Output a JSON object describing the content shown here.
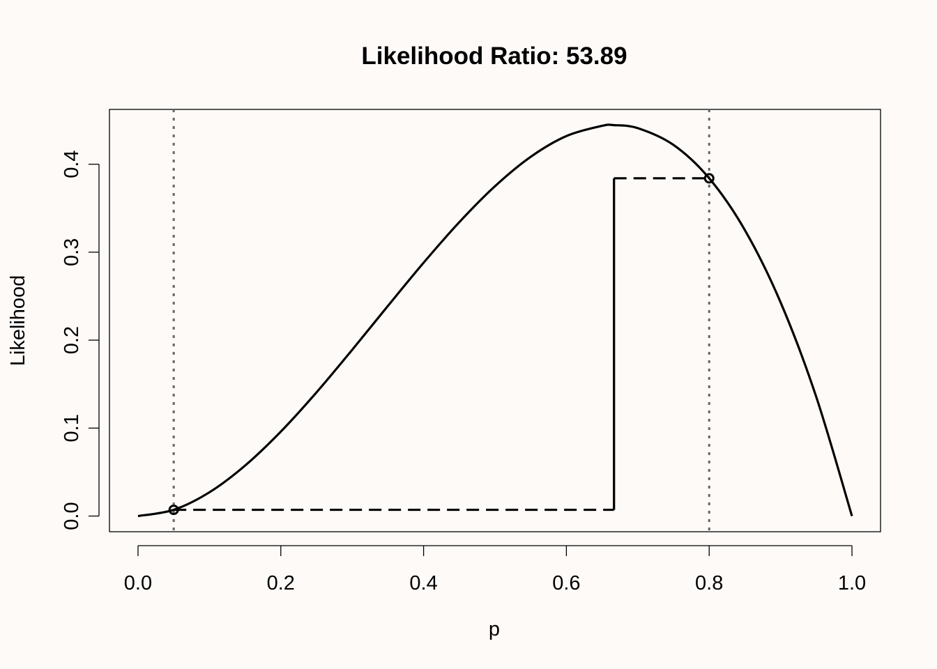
{
  "chart_data": {
    "type": "line",
    "title": "Likelihood Ratio: 53.89",
    "xlabel": "p",
    "ylabel": "Likelihood",
    "xlim": [
      -0.04,
      1.04
    ],
    "ylim": [
      -0.0178,
      0.4623
    ],
    "x_ticks": [
      0.0,
      0.2,
      0.4,
      0.6,
      0.8,
      1.0
    ],
    "x_tick_labels": [
      "0.0",
      "0.2",
      "0.4",
      "0.6",
      "0.8",
      "1.0"
    ],
    "y_ticks": [
      0.0,
      0.1,
      0.2,
      0.3,
      0.4
    ],
    "y_tick_labels": [
      "0.0",
      "0.1",
      "0.2",
      "0.3",
      "0.4"
    ],
    "grid": false,
    "series": [
      {
        "style": "solid",
        "color": "#000000",
        "x": [
          0.0,
          0.05,
          0.1,
          0.15,
          0.2,
          0.25,
          0.3,
          0.35,
          0.4,
          0.45,
          0.5,
          0.55,
          0.6,
          0.65,
          0.6667,
          0.7,
          0.75,
          0.8,
          0.85,
          0.9,
          0.95,
          1.0
        ],
        "y": [
          0.0,
          0.0071,
          0.027,
          0.0574,
          0.096,
          0.1406,
          0.189,
          0.2389,
          0.288,
          0.3341,
          0.375,
          0.4084,
          0.432,
          0.4436,
          0.4444,
          0.441,
          0.4219,
          0.384,
          0.3251,
          0.243,
          0.1354,
          0.0
        ]
      }
    ],
    "points": [
      {
        "x": 0.05,
        "y": 0.0071
      },
      {
        "x": 0.8,
        "y": 0.384
      }
    ],
    "reference_lines": [
      {
        "orientation": "vertical",
        "x": 0.05,
        "style": "dotted",
        "color": "#666666"
      },
      {
        "orientation": "vertical",
        "x": 0.8,
        "style": "dotted",
        "color": "#666666"
      }
    ],
    "annotations": [
      {
        "type": "segment",
        "style": "dashed",
        "x1": 0.05,
        "y1": 0.0071,
        "x2": 0.6667,
        "y2": 0.0071
      },
      {
        "type": "segment",
        "style": "solid",
        "x1": 0.6667,
        "y1": 0.0071,
        "x2": 0.6667,
        "y2": 0.384
      },
      {
        "type": "segment",
        "style": "dashed",
        "x1": 0.6667,
        "y1": 0.384,
        "x2": 0.8,
        "y2": 0.384
      }
    ]
  }
}
